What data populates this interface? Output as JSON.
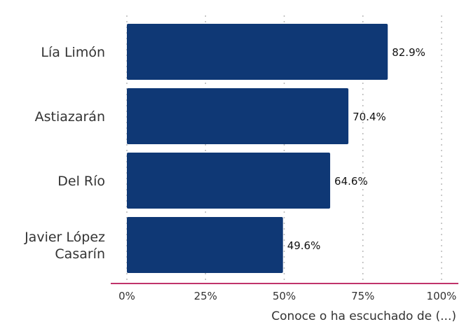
{
  "chart_data": {
    "type": "bar",
    "orientation": "horizontal",
    "categories": [
      [
        "Lía Limón"
      ],
      [
        "Astiazarán"
      ],
      [
        "Del Río"
      ],
      [
        "Javier López",
        "Casarín"
      ]
    ],
    "values": [
      82.9,
      70.4,
      64.6,
      49.6
    ],
    "value_labels": [
      "82.9%",
      "70.4%",
      "64.6%",
      "49.6%"
    ],
    "title": "",
    "xlabel": "Conoce o ha escuchado de (...)",
    "ylabel": "",
    "xlim": [
      0,
      100
    ],
    "x_ticks": [
      0,
      25,
      50,
      75,
      100
    ],
    "x_tick_labels": [
      "0%",
      "25%",
      "50%",
      "75%",
      "100%"
    ],
    "grid": "vertical-dotted",
    "bar_color": "#0f3875",
    "axis_line_color": "#c0336b"
  }
}
